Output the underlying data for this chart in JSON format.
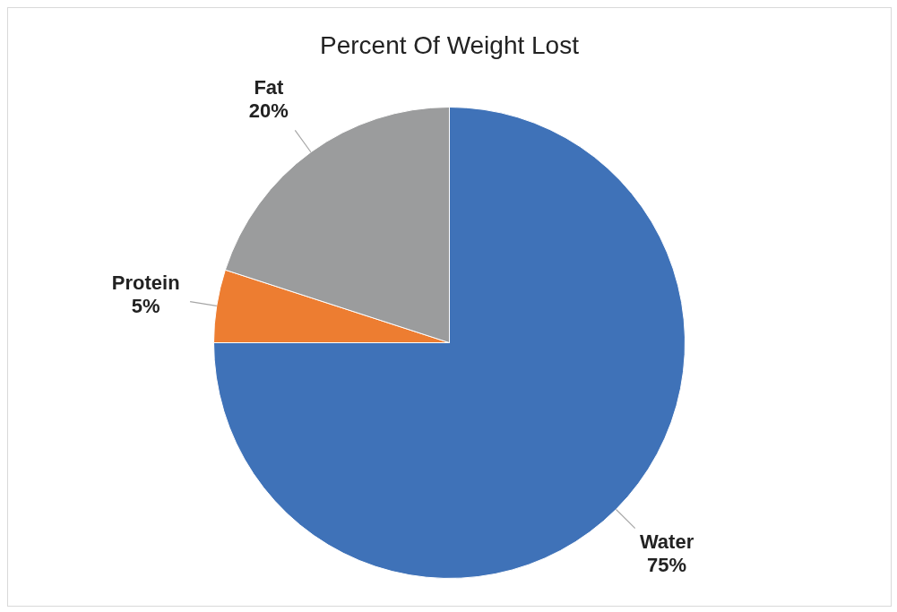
{
  "chart_data": {
    "type": "pie",
    "title": "Percent Of Weight Lost",
    "categories": [
      "Water",
      "Protein",
      "Fat"
    ],
    "values": [
      75,
      5,
      20
    ],
    "value_labels": [
      "75%",
      "5%",
      "20%"
    ],
    "colors": [
      "#3f72b8",
      "#ed7d31",
      "#9b9c9d"
    ],
    "legend": false
  }
}
